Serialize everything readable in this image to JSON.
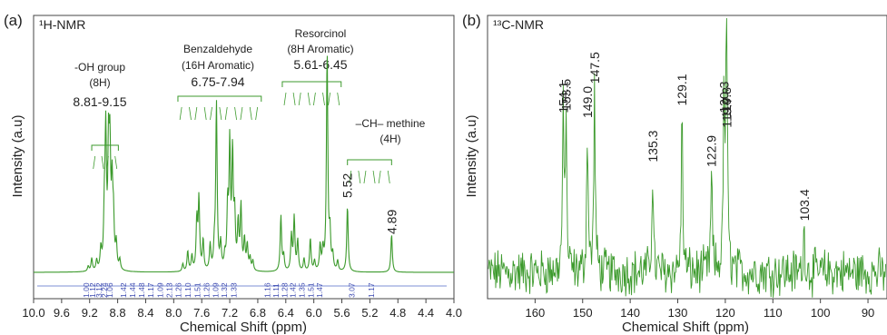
{
  "chart_data": [
    {
      "type": "line",
      "panel_letter": "(a)",
      "title": "¹H-NMR",
      "xlabel": "Chemical Shift (ppm)",
      "ylabel": "Intensity (a.u)",
      "xlim": [
        10.0,
        4.0
      ],
      "x_reversed": true,
      "xticks": [
        "10.0",
        "9.6",
        "9.2",
        "8.8",
        "8.4",
        "8.0",
        "7.6",
        "7.2",
        "6.8",
        "6.4",
        "6.0",
        "5.6",
        "5.2",
        "4.8",
        "4.4",
        "4.0"
      ],
      "color": "#3c9a2c",
      "peaks": [
        {
          "x": 9.22,
          "y": 0.02
        },
        {
          "x": 9.17,
          "y": 0.05
        },
        {
          "x": 9.1,
          "y": 0.04
        },
        {
          "x": 9.04,
          "y": 0.08
        },
        {
          "x": 8.99,
          "y": 0.2
        },
        {
          "x": 8.97,
          "y": 0.52
        },
        {
          "x": 8.93,
          "y": 0.45
        },
        {
          "x": 8.91,
          "y": 0.42
        },
        {
          "x": 8.88,
          "y": 0.3
        },
        {
          "x": 8.86,
          "y": 0.18
        },
        {
          "x": 8.82,
          "y": 0.1
        },
        {
          "x": 8.77,
          "y": 0.04
        },
        {
          "x": 7.87,
          "y": 0.03
        },
        {
          "x": 7.8,
          "y": 0.08
        },
        {
          "x": 7.74,
          "y": 0.06
        },
        {
          "x": 7.67,
          "y": 0.2
        },
        {
          "x": 7.64,
          "y": 0.28
        },
        {
          "x": 7.58,
          "y": 0.12
        },
        {
          "x": 7.48,
          "y": 0.1
        },
        {
          "x": 7.42,
          "y": 0.08
        },
        {
          "x": 7.39,
          "y": 0.66
        },
        {
          "x": 7.33,
          "y": 0.1
        },
        {
          "x": 7.27,
          "y": 0.05
        },
        {
          "x": 7.23,
          "y": 0.24
        },
        {
          "x": 7.2,
          "y": 0.48
        },
        {
          "x": 7.16,
          "y": 0.45
        },
        {
          "x": 7.13,
          "y": 0.2
        },
        {
          "x": 7.08,
          "y": 0.18
        },
        {
          "x": 7.04,
          "y": 0.25
        },
        {
          "x": 6.99,
          "y": 0.12
        },
        {
          "x": 6.95,
          "y": 0.1
        },
        {
          "x": 6.91,
          "y": 0.05
        },
        {
          "x": 6.87,
          "y": 0.04
        },
        {
          "x": 6.47,
          "y": 0.22
        },
        {
          "x": 6.43,
          "y": 0.06
        },
        {
          "x": 6.32,
          "y": 0.14
        },
        {
          "x": 6.28,
          "y": 0.21
        },
        {
          "x": 6.23,
          "y": 0.12
        },
        {
          "x": 6.14,
          "y": 0.05
        },
        {
          "x": 6.05,
          "y": 0.13
        },
        {
          "x": 5.99,
          "y": 0.04
        },
        {
          "x": 5.91,
          "y": 0.1
        },
        {
          "x": 5.87,
          "y": 0.08
        },
        {
          "x": 5.81,
          "y": 0.86
        },
        {
          "x": 5.77,
          "y": 0.14
        },
        {
          "x": 5.73,
          "y": 0.06
        },
        {
          "x": 5.66,
          "y": 0.04
        },
        {
          "x": 5.52,
          "y": 0.26
        },
        {
          "x": 4.89,
          "y": 0.15
        }
      ],
      "annotations": [
        {
          "lines": [
            "-OH group",
            "(8H)"
          ],
          "value": "8.81-9.15"
        },
        {
          "lines": [
            "Benzaldehyde",
            "(16H Aromatic)"
          ],
          "value": "6.75-7.94"
        },
        {
          "lines": [
            "Resorcinol",
            "(8H Aromatic)"
          ],
          "value": "5.61-6.45"
        },
        {
          "lines": [
            "–CH– methine",
            "(4H)"
          ],
          "value": ""
        }
      ],
      "peak_labels": [
        {
          "x": 5.52,
          "label": "5.52"
        },
        {
          "x": 4.89,
          "label": "4.89"
        }
      ],
      "integrations": [
        {
          "x": 9.25,
          "label": "1.00"
        },
        {
          "x": 9.16,
          "label": "1.12"
        },
        {
          "x": 9.07,
          "label": "3.12"
        },
        {
          "x": 8.99,
          "label": "2.24"
        },
        {
          "x": 8.91,
          "label": "1.06"
        },
        {
          "x": 8.72,
          "label": "1.42"
        },
        {
          "x": 8.59,
          "label": "1.44"
        },
        {
          "x": 8.46,
          "label": "1.48"
        },
        {
          "x": 8.33,
          "label": "1.17"
        },
        {
          "x": 8.19,
          "label": "1.09"
        },
        {
          "x": 8.06,
          "label": "2.13"
        },
        {
          "x": 7.93,
          "label": "1.26"
        },
        {
          "x": 7.8,
          "label": "1.10"
        },
        {
          "x": 7.66,
          "label": "1.51"
        },
        {
          "x": 7.53,
          "label": "1.26"
        },
        {
          "x": 7.4,
          "label": "1.09"
        },
        {
          "x": 7.28,
          "label": "1.32"
        },
        {
          "x": 7.14,
          "label": "1.33"
        },
        {
          "x": 6.66,
          "label": "1.16"
        },
        {
          "x": 6.54,
          "label": "1.11"
        },
        {
          "x": 6.42,
          "label": "1.28"
        },
        {
          "x": 6.3,
          "label": "1.42"
        },
        {
          "x": 6.17,
          "label": "1.35"
        },
        {
          "x": 6.04,
          "label": "1.51"
        },
        {
          "x": 5.92,
          "label": "1.47"
        },
        {
          "x": 5.46,
          "label": "3.07"
        },
        {
          "x": 5.18,
          "label": "1.17"
        }
      ]
    },
    {
      "type": "line",
      "panel_letter": "(b)",
      "title": "¹³C-NMR",
      "xlabel": "Chemical Shift (ppm)",
      "ylabel": "Intensity (a.u)",
      "xlim": [
        170,
        86
      ],
      "x_reversed": true,
      "xticks": [
        "160",
        "150",
        "140",
        "130",
        "120",
        "110",
        "100",
        "90"
      ],
      "color": "#3c9a2c",
      "peaks": [
        {
          "x": 154.1,
          "y": 0.62,
          "label": "154.1"
        },
        {
          "x": 153.5,
          "y": 0.63,
          "label": "153.5"
        },
        {
          "x": 149.0,
          "y": 0.6,
          "label": "149.0"
        },
        {
          "x": 147.5,
          "y": 0.74,
          "label": "147.5"
        },
        {
          "x": 135.3,
          "y": 0.42,
          "label": "135.3"
        },
        {
          "x": 129.1,
          "y": 0.65,
          "label": "129.1"
        },
        {
          "x": 122.9,
          "y": 0.4,
          "label": "122.9"
        },
        {
          "x": 120.3,
          "y": 0.62,
          "label": "120.3"
        },
        {
          "x": 119.8,
          "y": 0.6,
          "label": "119.8"
        },
        {
          "x": 119.7,
          "y": 0.56,
          "label": "119.7"
        },
        {
          "x": 103.4,
          "y": 0.18,
          "label": "103.4"
        }
      ]
    }
  ]
}
